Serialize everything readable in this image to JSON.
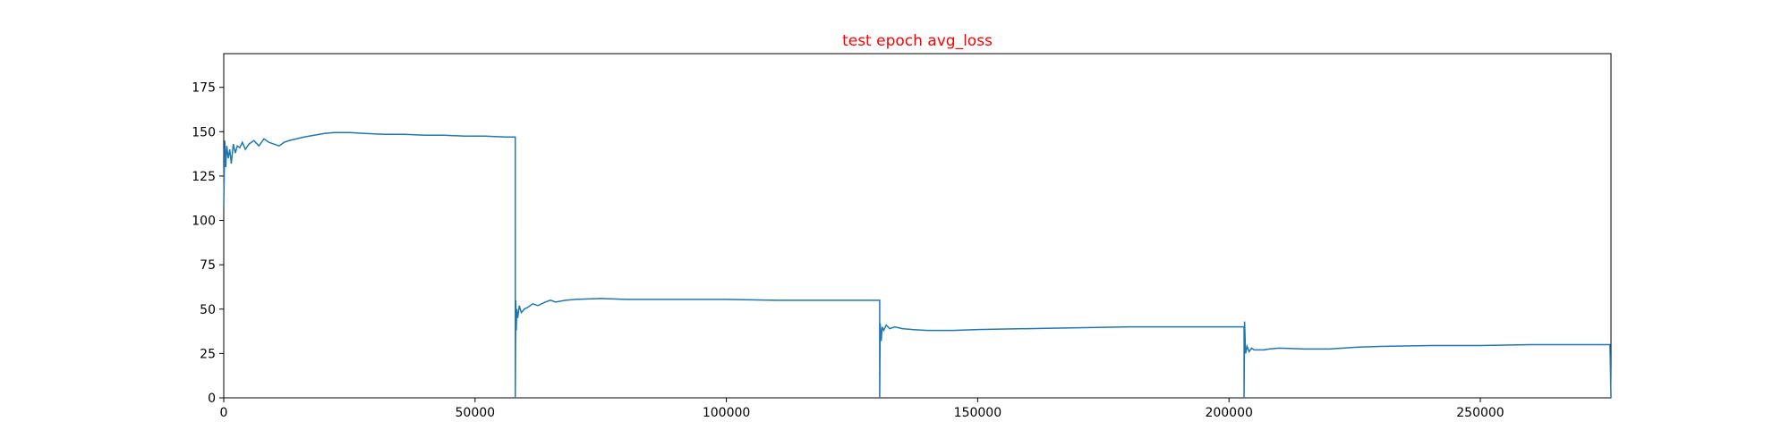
{
  "chart_data": {
    "type": "line",
    "title": "test epoch avg_loss",
    "title_color": "#ff0000",
    "line_color": "#1f77b4",
    "xlabel": "",
    "ylabel": "",
    "xlim": [
      0,
      276000
    ],
    "ylim": [
      0,
      194
    ],
    "grid": false,
    "x_ticks": [
      0,
      50000,
      100000,
      150000,
      200000,
      250000
    ],
    "y_ticks": [
      0,
      25,
      50,
      75,
      100,
      125,
      150,
      175
    ],
    "series": [
      {
        "x": [
          0,
          200,
          400,
          600,
          900,
          1200,
          1500,
          1900,
          2300,
          2700,
          3200,
          3700,
          4300,
          5000,
          6000,
          7000,
          8000,
          9000,
          10000,
          11000,
          12000,
          13000,
          14500,
          16000,
          18000,
          20000,
          22000,
          25000,
          28000,
          32000,
          36000,
          40000,
          44000,
          48000,
          52000,
          56000,
          58000,
          58001,
          58100,
          58200,
          58300,
          58500,
          58800,
          59200,
          59800,
          60500,
          61500,
          62500,
          64000,
          65000,
          66000,
          68000,
          70000,
          75000,
          80000,
          90000,
          100000,
          110000,
          120000,
          130500,
          130501,
          130600,
          130800,
          131000,
          131300,
          131800,
          132500,
          133500,
          135000,
          137000,
          140000,
          145000,
          150000,
          160000,
          170000,
          180000,
          190000,
          203000,
          203001,
          203100,
          203300,
          203600,
          204000,
          204500,
          205000,
          206000,
          207000,
          208000,
          210000,
          215000,
          220000,
          225000,
          230000,
          240000,
          250000,
          260000,
          270000,
          275800,
          276000
        ],
        "y": [
          108,
          145,
          130,
          142,
          135,
          140,
          132,
          143,
          138,
          142,
          141,
          144,
          140,
          143,
          145,
          142,
          146,
          144,
          143,
          142,
          144,
          145,
          146,
          147,
          148,
          149,
          149.5,
          149.5,
          149,
          148.5,
          148.5,
          148,
          148,
          147.5,
          147.5,
          147,
          147,
          0,
          55,
          38,
          50,
          45,
          52,
          48,
          50,
          51,
          53,
          52,
          54,
          55,
          54,
          55,
          55.5,
          56,
          55.5,
          55.5,
          55.5,
          55,
          55,
          55,
          0,
          42,
          32,
          40,
          38,
          41,
          39,
          40,
          39,
          38.5,
          38,
          38,
          38.5,
          39,
          39.5,
          40,
          40,
          40,
          0,
          43,
          25,
          29,
          26,
          28,
          27,
          27,
          27,
          27.5,
          28,
          27.5,
          27.5,
          28.5,
          29,
          29.5,
          29.5,
          30,
          30,
          30,
          0
        ]
      }
    ]
  }
}
